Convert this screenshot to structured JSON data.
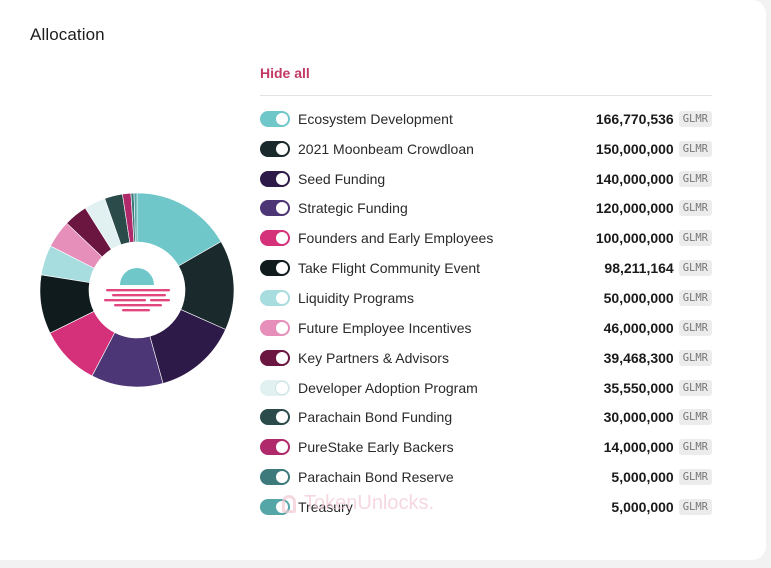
{
  "header": {
    "title": "Allocation",
    "hide_all": "Hide all"
  },
  "watermark": "TokenUnlocks.",
  "chart_data": {
    "type": "pie",
    "variant": "donut",
    "unit": "GLMR",
    "series": [
      {
        "name": "Ecosystem Development",
        "value": 166770536,
        "display": "166,770,536",
        "color": "#6fc7c9"
      },
      {
        "name": "2021 Moonbeam Crowdloan",
        "value": 150000000,
        "display": "150,000,000",
        "color": "#19292c"
      },
      {
        "name": "Seed Funding",
        "value": 140000000,
        "display": "140,000,000",
        "color": "#2e1a48"
      },
      {
        "name": "Strategic Funding",
        "value": 120000000,
        "display": "120,000,000",
        "color": "#4c3676"
      },
      {
        "name": "Founders and Early Employees",
        "value": 100000000,
        "display": "100,000,000",
        "color": "#d5317b"
      },
      {
        "name": "Take Flight Community Event",
        "value": 98211164,
        "display": "98,211,164",
        "color": "#0f1b1c"
      },
      {
        "name": "Liquidity Programs",
        "value": 50000000,
        "display": "50,000,000",
        "color": "#a8dde0"
      },
      {
        "name": "Future Employee Incentives",
        "value": 46000000,
        "display": "46,000,000",
        "color": "#e68fbb"
      },
      {
        "name": "Key Partners & Advisors",
        "value": 39468300,
        "display": "39,468,300",
        "color": "#6b1541"
      },
      {
        "name": "Developer Adoption Program",
        "value": 35550000,
        "display": "35,550,000",
        "color": "#e1f1f2"
      },
      {
        "name": "Parachain Bond Funding",
        "value": 30000000,
        "display": "30,000,000",
        "color": "#2b4a4a"
      },
      {
        "name": "PureStake Early Backers",
        "value": 14000000,
        "display": "14,000,000",
        "color": "#b0296a"
      },
      {
        "name": "Parachain Bond Reserve",
        "value": 5000000,
        "display": "5,000,000",
        "color": "#3d7a7c"
      },
      {
        "name": "Treasury",
        "value": 5000000,
        "display": "5,000,000",
        "color": "#55a6a6"
      }
    ]
  }
}
